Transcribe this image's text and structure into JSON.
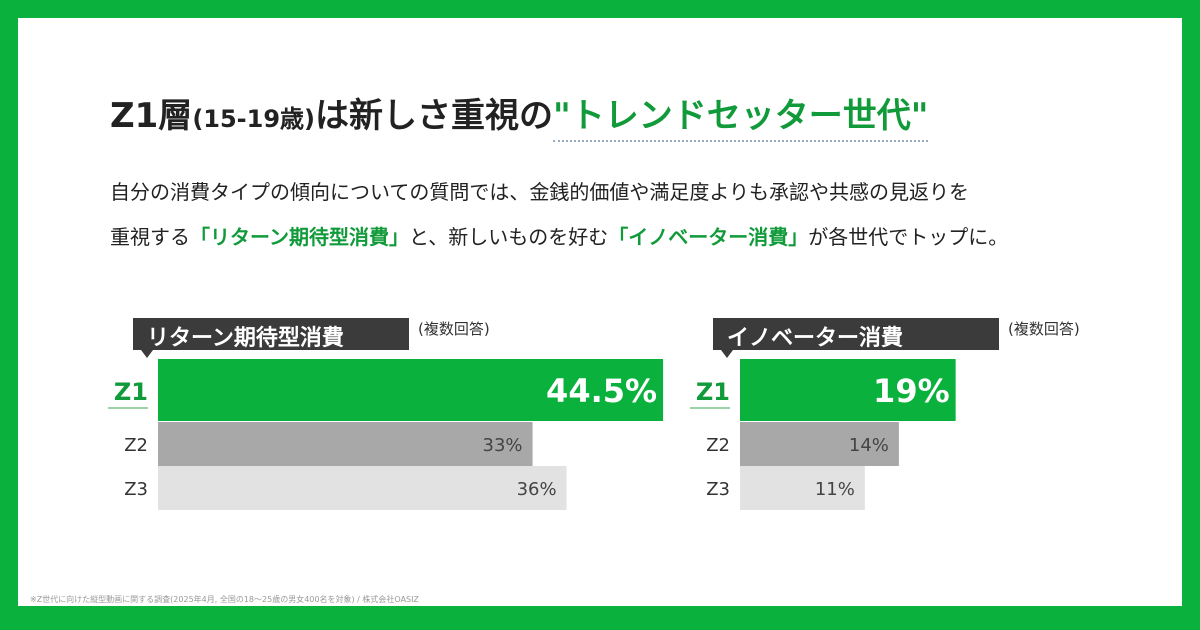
{
  "title": {
    "prefix": "Z1層",
    "age": "(15-19歳)",
    "middle": "は新しさ重視の",
    "highlight": "\"トレンドセッター世代\""
  },
  "body": {
    "line1": "自分の消費タイプの傾向についての質問では、金銭的価値や満足度よりも承認や共感の見返りを",
    "line2_a": "重視する",
    "line2_b": "「リターン期待型消費」",
    "line2_c": "と、新しいものを好む",
    "line2_d": "「イノベーター消費」",
    "line2_e": "が各世代でトップに。"
  },
  "footnote": "※Z世代に向けた縦型動画に関する調査(2025年4月, 全国の18〜25歳の男女400名を対象) / 株式会社OASIZ",
  "colors": {
    "accent": "#0bb13d",
    "z1": "#0bb13d",
    "z2": "#a8a8a8",
    "z3": "#e2e2e2"
  },
  "chart_data": [
    {
      "type": "bar",
      "title": "リターン期待型消費",
      "note": "(複数回答)",
      "categories": [
        "Z1",
        "Z2",
        "Z3"
      ],
      "values": [
        44.5,
        33,
        36
      ],
      "labels": [
        "44.5%",
        "33%",
        "36%"
      ],
      "orientation": "horizontal"
    },
    {
      "type": "bar",
      "title": "イノベーター消費",
      "note": "(複数回答)",
      "categories": [
        "Z1",
        "Z2",
        "Z3"
      ],
      "values": [
        19,
        14,
        11
      ],
      "labels": [
        "19%",
        "14%",
        "11%"
      ],
      "orientation": "horizontal"
    }
  ]
}
